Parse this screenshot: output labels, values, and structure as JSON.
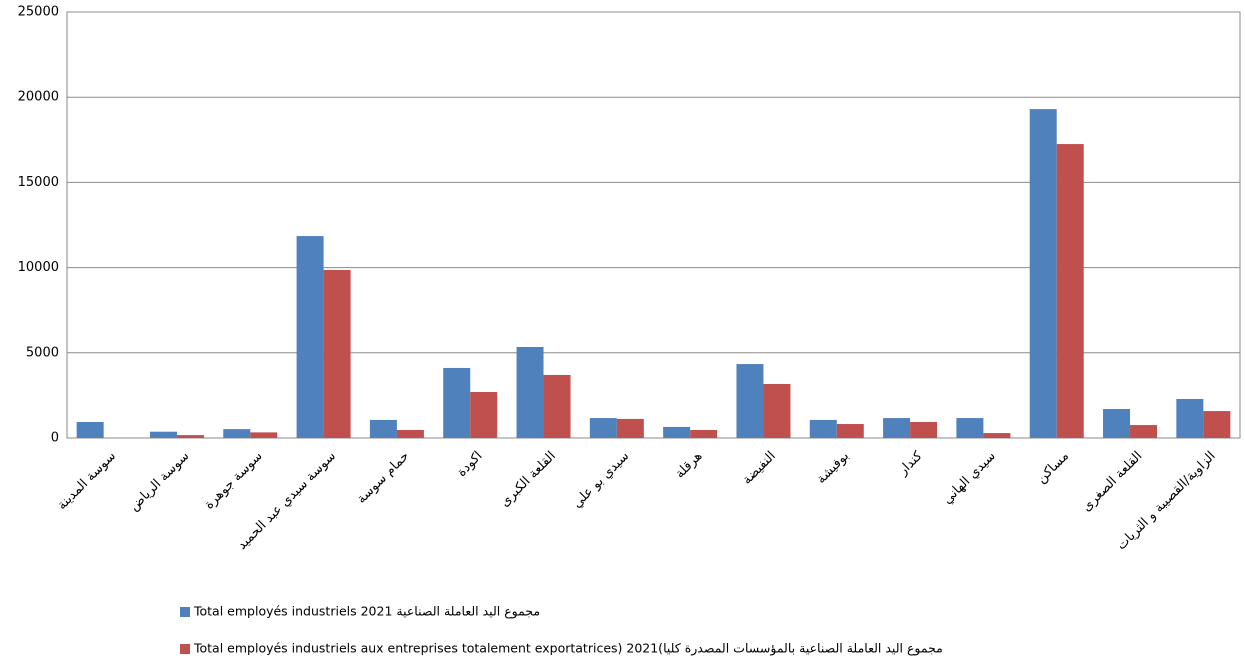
{
  "chart_data": {
    "type": "bar",
    "categories": [
      "سوسة المدينة",
      "سوسة الرياض",
      "سوسة جوهرة",
      "سوسة سيدي عبد الحميد",
      "حمام سوسة",
      "اكودة",
      "القلعة الكبرى",
      "سيدي بو علي",
      "هرقلة",
      "النفيضة",
      "بوفيشة",
      "كندار",
      "سيدي الهاني",
      "مساكن",
      "القلعة الصغرى",
      "الزاوية/القصيبة و الثريات"
    ],
    "series": [
      {
        "name": "Total employés industriels 2021 مجموع اليد العاملة الصناعية",
        "color": "#4f81bd",
        "values": [
          940,
          370,
          520,
          11850,
          1060,
          4110,
          5340,
          1170,
          650,
          4340,
          1060,
          1170,
          1170,
          19300,
          1700,
          2290
        ]
      },
      {
        "name": "Total employés industriels aux entreprises totalement exportatrices) 2021(مجموع اليد العاملة الصناعية بالمؤسسات المصدرة كليا",
        "color": "#c0504d",
        "values": [
          0,
          170,
          330,
          9860,
          470,
          2700,
          3700,
          1120,
          470,
          3170,
          820,
          940,
          290,
          17250,
          760,
          1580
        ]
      }
    ],
    "ylim": [
      0,
      25000
    ],
    "yticks": [
      0,
      5000,
      10000,
      15000,
      20000,
      25000
    ],
    "grid": true
  }
}
